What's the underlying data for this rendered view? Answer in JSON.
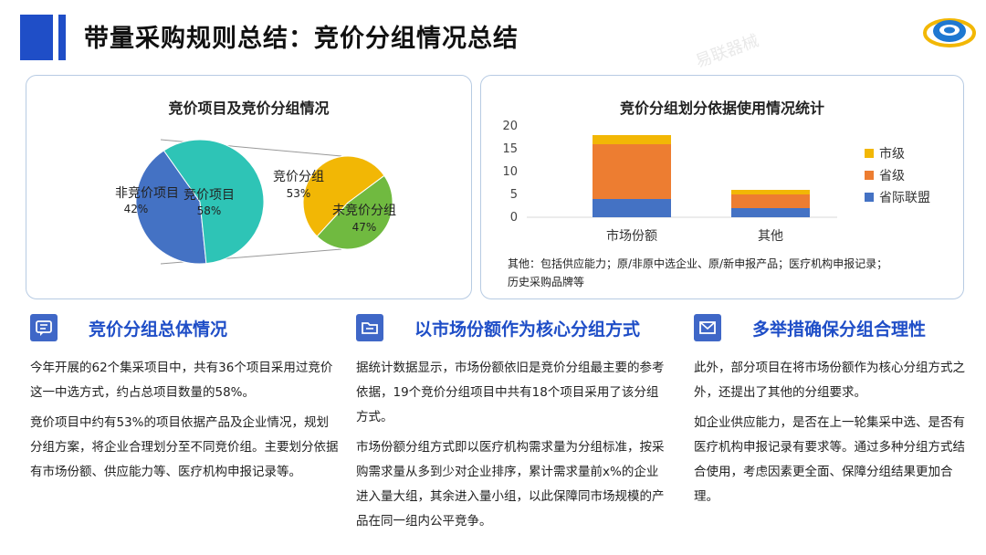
{
  "page": {
    "title": "带量采购规则总结：竞价分组情况总结"
  },
  "watermark": "易联器械",
  "left_chart": {
    "title": "竞价项目及竞价分组情况",
    "pie_main": [
      {
        "label": "非竞价项目",
        "pct": "42%",
        "value": 42,
        "color": "#4472c4"
      },
      {
        "label": "竞价项目",
        "pct": "58%",
        "value": 58,
        "color": "#2ec4b6"
      }
    ],
    "pie_sub": [
      {
        "label": "竞价分组",
        "pct": "53%",
        "value": 53,
        "color": "#f2b705"
      },
      {
        "label": "未竞价分组",
        "pct": "47%",
        "value": 47,
        "color": "#70ba40"
      }
    ]
  },
  "chart_data": {
    "type": "bar",
    "title": "竞价分组划分依据使用情况统计",
    "stacked": true,
    "categories": [
      "市场份额",
      "其他"
    ],
    "series": [
      {
        "name": "省际联盟",
        "values": [
          4,
          2
        ],
        "color": "#4472c4"
      },
      {
        "name": "省级",
        "values": [
          12,
          3
        ],
        "color": "#ed7d31"
      },
      {
        "name": "市级",
        "values": [
          2,
          1
        ],
        "color": "#f2b705"
      }
    ],
    "yticks": [
      "0",
      "5",
      "10",
      "15",
      "20"
    ],
    "ylim": [
      0,
      20
    ],
    "legend": "right",
    "grid": false
  },
  "chart_note": {
    "line1": "其他：包括供应能力；原/非原中选企业、原/新申报产品；医疗机构申报记录；",
    "line2": "历史采购品牌等"
  },
  "columns": [
    {
      "icon": "message-icon",
      "heading": "竞价分组总体情况",
      "paragraphs": [
        "今年开展的62个集采项目中，共有36个项目采用过竞价这一中选方式，约占总项目数量的58%。",
        "竞价项目中约有53%的项目依据产品及企业情况，规划分组方案，将企业合理划分至不同竞价组。主要划分依据有市场份额、供应能力等、医疗机构申报记录等。"
      ]
    },
    {
      "icon": "folder-icon",
      "heading": "以市场份额作为核心分组方式",
      "paragraphs": [
        "据统计数据显示，市场份额依旧是竞价分组最主要的参考依据，19个竞价分组项目中共有18个项目采用了该分组方式。",
        "市场份额分组方式即以医疗机构需求量为分组标准，按采购需求量从多到少对企业排序，累计需求量前x%的企业进入量大组，其余进入量小组，以此保障同市场规模的产品在同一组内公平竞争。"
      ]
    },
    {
      "icon": "mail-icon",
      "heading": "多举措确保分组合理性",
      "paragraphs": [
        "此外，部分项目在将市场份额作为核心分组方式之外，还提出了其他的分组要求。",
        "如企业供应能力，是否在上一轮集采中选、是否有医疗机构申报记录有要求等。通过多种分组方式结合使用，考虑因素更全面、保障分组结果更加合理。"
      ]
    }
  ]
}
